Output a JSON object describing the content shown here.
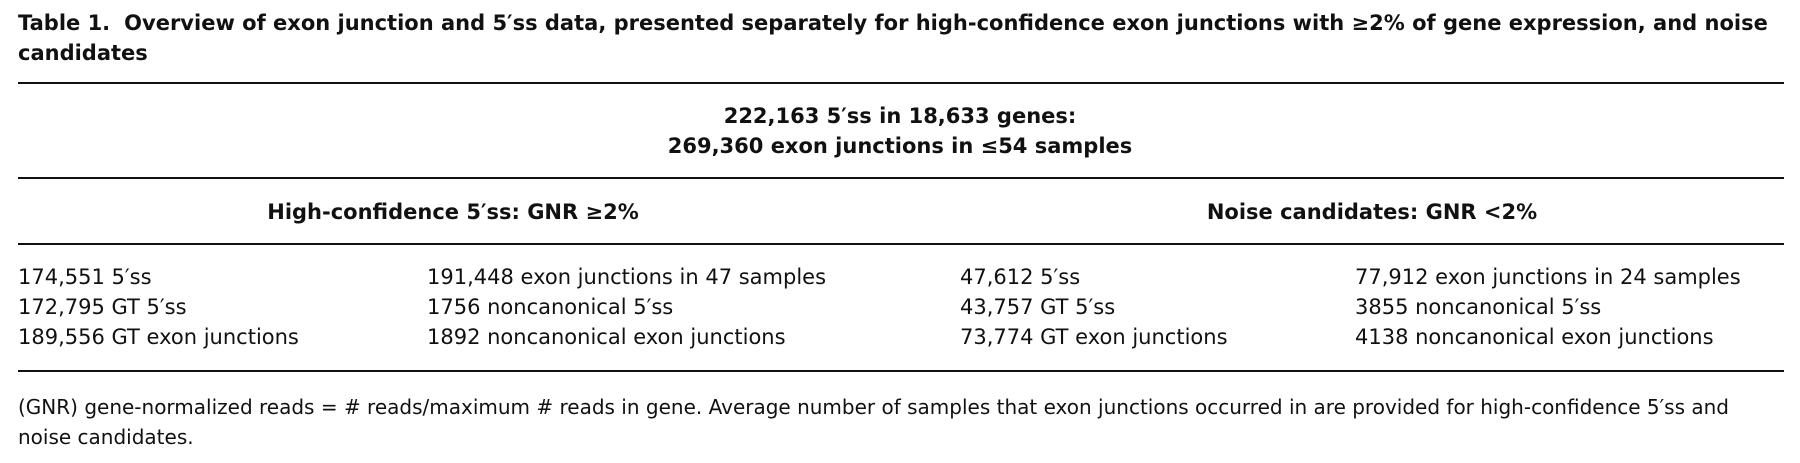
{
  "caption": {
    "label": "Table 1.",
    "title": "Overview of exon junction and 5′ss data, presented separately for high-confidence exon junctions with ≥2% of gene expression, and noise candidates"
  },
  "table": {
    "header": [
      "222,163 5′ss in 18,633 genes:",
      "269,360 exon junctions in ≤54 samples"
    ],
    "groups": [
      "High-confidence 5′ss: GNR ≥2%",
      "Noise candidates: GNR <2%"
    ],
    "rows": [
      [
        "174,551 5′ss",
        "191,448 exon junctions in 47 samples",
        "47,612 5′ss",
        "77,912 exon junctions in 24 samples"
      ],
      [
        "172,795 GT 5′ss",
        "1756 noncanonical 5′ss",
        "43,757 GT 5′ss",
        "3855 noncanonical 5′ss"
      ],
      [
        "189,556 GT exon junctions",
        "1892 noncanonical exon junctions",
        "73,774 GT exon junctions",
        "4138 noncanonical exon junctions"
      ]
    ]
  },
  "footnote": "(GNR) gene-normalized reads = # reads/maximum # reads in gene. Average number of samples that exon junctions occurred in are provided for high-confidence 5′ss and noise candidates."
}
